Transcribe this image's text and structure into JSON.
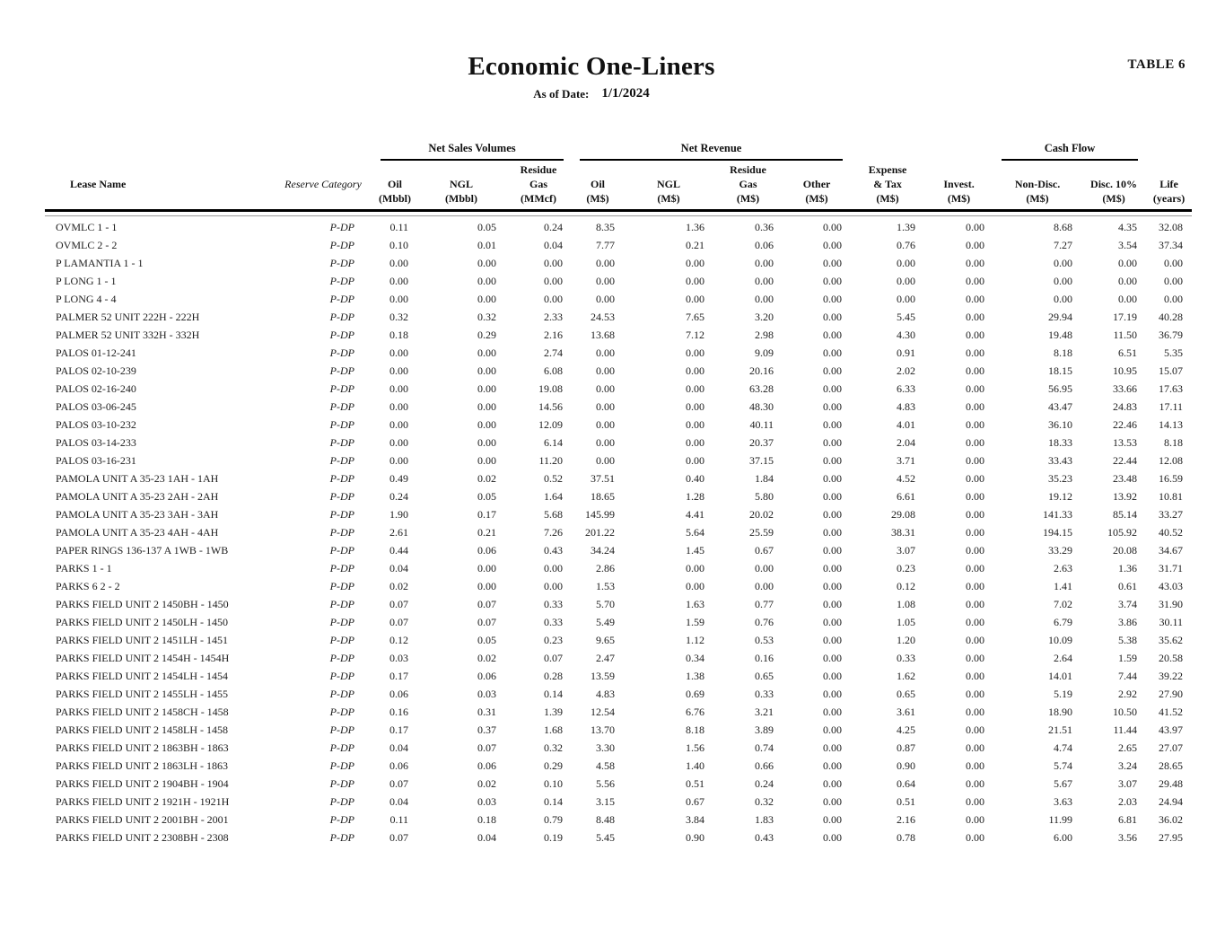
{
  "page": {
    "title": "Economic One-Liners",
    "as_of_label": "As of Date:",
    "as_of_date": "1/1/2024",
    "table_tag": "TABLE 6"
  },
  "table": {
    "groups": [
      {
        "label": "Net Sales Volumes"
      },
      {
        "label": "Net Revenue"
      },
      {
        "label": "Cash Flow"
      }
    ],
    "columns": [
      {
        "id": "lease_name",
        "lines": [
          "Lease Name"
        ]
      },
      {
        "id": "reserve_category",
        "lines": [
          "Reserve Category"
        ]
      },
      {
        "id": "oil_volume",
        "lines": [
          "Oil",
          "(Mbbl)"
        ]
      },
      {
        "id": "ngl_volume",
        "lines": [
          "NGL",
          "(Mbbl)"
        ]
      },
      {
        "id": "residue_gas_volume",
        "lines": [
          "Residue",
          "Gas",
          "(MMcf)"
        ]
      },
      {
        "id": "oil_revenue",
        "lines": [
          "Oil",
          "(M$)"
        ]
      },
      {
        "id": "ngl_revenue",
        "lines": [
          "NGL",
          "(M$)"
        ]
      },
      {
        "id": "residue_gas_revenue",
        "lines": [
          "Residue",
          "Gas",
          "(M$)"
        ]
      },
      {
        "id": "other_revenue",
        "lines": [
          "Other",
          "(M$)"
        ]
      },
      {
        "id": "expense_tax",
        "lines": [
          "Expense",
          "& Tax",
          "(M$)"
        ]
      },
      {
        "id": "invest",
        "lines": [
          "Invest.",
          "(M$)"
        ]
      },
      {
        "id": "cash_flow_non_disc",
        "lines": [
          "Non-Disc.",
          "(M$)"
        ]
      },
      {
        "id": "cash_flow_disc_10",
        "lines": [
          "Disc. 10%",
          "(M$)"
        ]
      },
      {
        "id": "life",
        "lines": [
          "Life",
          "(years)"
        ]
      }
    ],
    "rows": [
      {
        "lease": "OVMLC 1 - 1",
        "reserve": "P-DP",
        "values": [
          "0.11",
          "0.05",
          "0.24",
          "8.35",
          "1.36",
          "0.36",
          "0.00",
          "1.39",
          "0.00",
          "8.68",
          "4.35",
          "32.08"
        ]
      },
      {
        "lease": "OVMLC 2 - 2",
        "reserve": "P-DP",
        "values": [
          "0.10",
          "0.01",
          "0.04",
          "7.77",
          "0.21",
          "0.06",
          "0.00",
          "0.76",
          "0.00",
          "7.27",
          "3.54",
          "37.34"
        ]
      },
      {
        "lease": "P LAMANTIA 1 - 1",
        "reserve": "P-DP",
        "values": [
          "0.00",
          "0.00",
          "0.00",
          "0.00",
          "0.00",
          "0.00",
          "0.00",
          "0.00",
          "0.00",
          "0.00",
          "0.00",
          "0.00"
        ]
      },
      {
        "lease": "P LONG 1 - 1",
        "reserve": "P-DP",
        "values": [
          "0.00",
          "0.00",
          "0.00",
          "0.00",
          "0.00",
          "0.00",
          "0.00",
          "0.00",
          "0.00",
          "0.00",
          "0.00",
          "0.00"
        ]
      },
      {
        "lease": "P LONG 4 - 4",
        "reserve": "P-DP",
        "values": [
          "0.00",
          "0.00",
          "0.00",
          "0.00",
          "0.00",
          "0.00",
          "0.00",
          "0.00",
          "0.00",
          "0.00",
          "0.00",
          "0.00"
        ]
      },
      {
        "lease": "PALMER 52 UNIT 222H - 222H",
        "reserve": "P-DP",
        "values": [
          "0.32",
          "0.32",
          "2.33",
          "24.53",
          "7.65",
          "3.20",
          "0.00",
          "5.45",
          "0.00",
          "29.94",
          "17.19",
          "40.28"
        ]
      },
      {
        "lease": "PALMER 52 UNIT 332H - 332H",
        "reserve": "P-DP",
        "values": [
          "0.18",
          "0.29",
          "2.16",
          "13.68",
          "7.12",
          "2.98",
          "0.00",
          "4.30",
          "0.00",
          "19.48",
          "11.50",
          "36.79"
        ]
      },
      {
        "lease": "PALOS 01-12-241",
        "reserve": "P-DP",
        "values": [
          "0.00",
          "0.00",
          "2.74",
          "0.00",
          "0.00",
          "9.09",
          "0.00",
          "0.91",
          "0.00",
          "8.18",
          "6.51",
          "5.35"
        ]
      },
      {
        "lease": "PALOS 02-10-239",
        "reserve": "P-DP",
        "values": [
          "0.00",
          "0.00",
          "6.08",
          "0.00",
          "0.00",
          "20.16",
          "0.00",
          "2.02",
          "0.00",
          "18.15",
          "10.95",
          "15.07"
        ]
      },
      {
        "lease": "PALOS 02-16-240",
        "reserve": "P-DP",
        "values": [
          "0.00",
          "0.00",
          "19.08",
          "0.00",
          "0.00",
          "63.28",
          "0.00",
          "6.33",
          "0.00",
          "56.95",
          "33.66",
          "17.63"
        ]
      },
      {
        "lease": "PALOS 03-06-245",
        "reserve": "P-DP",
        "values": [
          "0.00",
          "0.00",
          "14.56",
          "0.00",
          "0.00",
          "48.30",
          "0.00",
          "4.83",
          "0.00",
          "43.47",
          "24.83",
          "17.11"
        ]
      },
      {
        "lease": "PALOS 03-10-232",
        "reserve": "P-DP",
        "values": [
          "0.00",
          "0.00",
          "12.09",
          "0.00",
          "0.00",
          "40.11",
          "0.00",
          "4.01",
          "0.00",
          "36.10",
          "22.46",
          "14.13"
        ]
      },
      {
        "lease": "PALOS 03-14-233",
        "reserve": "P-DP",
        "values": [
          "0.00",
          "0.00",
          "6.14",
          "0.00",
          "0.00",
          "20.37",
          "0.00",
          "2.04",
          "0.00",
          "18.33",
          "13.53",
          "8.18"
        ]
      },
      {
        "lease": "PALOS 03-16-231",
        "reserve": "P-DP",
        "values": [
          "0.00",
          "0.00",
          "11.20",
          "0.00",
          "0.00",
          "37.15",
          "0.00",
          "3.71",
          "0.00",
          "33.43",
          "22.44",
          "12.08"
        ]
      },
      {
        "lease": "PAMOLA UNIT A 35-23 1AH - 1AH",
        "reserve": "P-DP",
        "values": [
          "0.49",
          "0.02",
          "0.52",
          "37.51",
          "0.40",
          "1.84",
          "0.00",
          "4.52",
          "0.00",
          "35.23",
          "23.48",
          "16.59"
        ]
      },
      {
        "lease": "PAMOLA UNIT A 35-23 2AH - 2AH",
        "reserve": "P-DP",
        "values": [
          "0.24",
          "0.05",
          "1.64",
          "18.65",
          "1.28",
          "5.80",
          "0.00",
          "6.61",
          "0.00",
          "19.12",
          "13.92",
          "10.81"
        ]
      },
      {
        "lease": "PAMOLA UNIT A 35-23 3AH - 3AH",
        "reserve": "P-DP",
        "values": [
          "1.90",
          "0.17",
          "5.68",
          "145.99",
          "4.41",
          "20.02",
          "0.00",
          "29.08",
          "0.00",
          "141.33",
          "85.14",
          "33.27"
        ]
      },
      {
        "lease": "PAMOLA UNIT A 35-23 4AH - 4AH",
        "reserve": "P-DP",
        "values": [
          "2.61",
          "0.21",
          "7.26",
          "201.22",
          "5.64",
          "25.59",
          "0.00",
          "38.31",
          "0.00",
          "194.15",
          "105.92",
          "40.52"
        ]
      },
      {
        "lease": "PAPER RINGS 136-137 A 1WB - 1WB",
        "reserve": "P-DP",
        "values": [
          "0.44",
          "0.06",
          "0.43",
          "34.24",
          "1.45",
          "0.67",
          "0.00",
          "3.07",
          "0.00",
          "33.29",
          "20.08",
          "34.67"
        ]
      },
      {
        "lease": "PARKS 1 - 1",
        "reserve": "P-DP",
        "values": [
          "0.04",
          "0.00",
          "0.00",
          "2.86",
          "0.00",
          "0.00",
          "0.00",
          "0.23",
          "0.00",
          "2.63",
          "1.36",
          "31.71"
        ]
      },
      {
        "lease": "PARKS 6 2 - 2",
        "reserve": "P-DP",
        "values": [
          "0.02",
          "0.00",
          "0.00",
          "1.53",
          "0.00",
          "0.00",
          "0.00",
          "0.12",
          "0.00",
          "1.41",
          "0.61",
          "43.03"
        ]
      },
      {
        "lease": "PARKS FIELD UNIT 2 1450BH - 1450",
        "reserve": "P-DP",
        "values": [
          "0.07",
          "0.07",
          "0.33",
          "5.70",
          "1.63",
          "0.77",
          "0.00",
          "1.08",
          "0.00",
          "7.02",
          "3.74",
          "31.90"
        ]
      },
      {
        "lease": "PARKS FIELD UNIT 2 1450LH - 1450",
        "reserve": "P-DP",
        "values": [
          "0.07",
          "0.07",
          "0.33",
          "5.49",
          "1.59",
          "0.76",
          "0.00",
          "1.05",
          "0.00",
          "6.79",
          "3.86",
          "30.11"
        ]
      },
      {
        "lease": "PARKS FIELD UNIT 2 1451LH - 1451",
        "reserve": "P-DP",
        "values": [
          "0.12",
          "0.05",
          "0.23",
          "9.65",
          "1.12",
          "0.53",
          "0.00",
          "1.20",
          "0.00",
          "10.09",
          "5.38",
          "35.62"
        ]
      },
      {
        "lease": "PARKS FIELD UNIT 2 1454H - 1454H",
        "reserve": "P-DP",
        "values": [
          "0.03",
          "0.02",
          "0.07",
          "2.47",
          "0.34",
          "0.16",
          "0.00",
          "0.33",
          "0.00",
          "2.64",
          "1.59",
          "20.58"
        ]
      },
      {
        "lease": "PARKS FIELD UNIT 2 1454LH - 1454",
        "reserve": "P-DP",
        "values": [
          "0.17",
          "0.06",
          "0.28",
          "13.59",
          "1.38",
          "0.65",
          "0.00",
          "1.62",
          "0.00",
          "14.01",
          "7.44",
          "39.22"
        ]
      },
      {
        "lease": "PARKS FIELD UNIT 2 1455LH - 1455",
        "reserve": "P-DP",
        "values": [
          "0.06",
          "0.03",
          "0.14",
          "4.83",
          "0.69",
          "0.33",
          "0.00",
          "0.65",
          "0.00",
          "5.19",
          "2.92",
          "27.90"
        ]
      },
      {
        "lease": "PARKS FIELD UNIT 2 1458CH - 1458",
        "reserve": "P-DP",
        "values": [
          "0.16",
          "0.31",
          "1.39",
          "12.54",
          "6.76",
          "3.21",
          "0.00",
          "3.61",
          "0.00",
          "18.90",
          "10.50",
          "41.52"
        ]
      },
      {
        "lease": "PARKS FIELD UNIT 2 1458LH - 1458",
        "reserve": "P-DP",
        "values": [
          "0.17",
          "0.37",
          "1.68",
          "13.70",
          "8.18",
          "3.89",
          "0.00",
          "4.25",
          "0.00",
          "21.51",
          "11.44",
          "43.97"
        ]
      },
      {
        "lease": "PARKS FIELD UNIT 2 1863BH - 1863",
        "reserve": "P-DP",
        "values": [
          "0.04",
          "0.07",
          "0.32",
          "3.30",
          "1.56",
          "0.74",
          "0.00",
          "0.87",
          "0.00",
          "4.74",
          "2.65",
          "27.07"
        ]
      },
      {
        "lease": "PARKS FIELD UNIT 2 1863LH - 1863",
        "reserve": "P-DP",
        "values": [
          "0.06",
          "0.06",
          "0.29",
          "4.58",
          "1.40",
          "0.66",
          "0.00",
          "0.90",
          "0.00",
          "5.74",
          "3.24",
          "28.65"
        ]
      },
      {
        "lease": "PARKS FIELD UNIT 2 1904BH - 1904",
        "reserve": "P-DP",
        "values": [
          "0.07",
          "0.02",
          "0.10",
          "5.56",
          "0.51",
          "0.24",
          "0.00",
          "0.64",
          "0.00",
          "5.67",
          "3.07",
          "29.48"
        ]
      },
      {
        "lease": "PARKS FIELD UNIT 2 1921H - 1921H",
        "reserve": "P-DP",
        "values": [
          "0.04",
          "0.03",
          "0.14",
          "3.15",
          "0.67",
          "0.32",
          "0.00",
          "0.51",
          "0.00",
          "3.63",
          "2.03",
          "24.94"
        ]
      },
      {
        "lease": "PARKS FIELD UNIT 2 2001BH - 2001",
        "reserve": "P-DP",
        "values": [
          "0.11",
          "0.18",
          "0.79",
          "8.48",
          "3.84",
          "1.83",
          "0.00",
          "2.16",
          "0.00",
          "11.99",
          "6.81",
          "36.02"
        ]
      },
      {
        "lease": "PARKS FIELD UNIT 2 2308BH - 2308",
        "reserve": "P-DP",
        "values": [
          "0.07",
          "0.04",
          "0.19",
          "5.45",
          "0.90",
          "0.43",
          "0.00",
          "0.78",
          "0.00",
          "6.00",
          "3.56",
          "27.95"
        ]
      }
    ]
  }
}
